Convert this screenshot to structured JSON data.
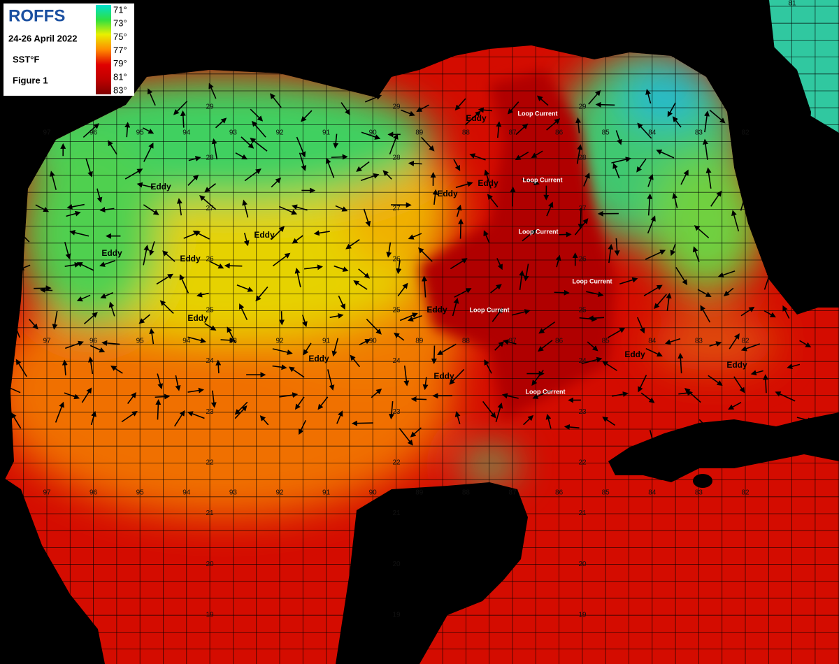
{
  "header": {
    "logo": "ROFFS",
    "date": "24-26 April 2022",
    "measure": "SST°F",
    "figure": "Figure 1"
  },
  "legend": {
    "labels": [
      "71°",
      "73°",
      "75°",
      "77°",
      "79°",
      "81°",
      "83°"
    ]
  },
  "map": {
    "longitudes": [
      97,
      96,
      95,
      94,
      93,
      92,
      91,
      90,
      89,
      88,
      87,
      86,
      85,
      84,
      83,
      82
    ],
    "top_longitude": 81,
    "latitudes": [
      29,
      28,
      27,
      26,
      25,
      24,
      23,
      22,
      21,
      20,
      19
    ],
    "eddies": [
      "Eddy",
      "Eddy",
      "Eddy",
      "Eddy",
      "Eddy",
      "Eddy",
      "Eddy",
      "Eddy",
      "Eddy",
      "Eddy",
      "Eddy",
      "Eddy",
      "Eddy"
    ],
    "loop_current": [
      "Loop Current",
      "Loop Current",
      "Loop Current",
      "Loop Current",
      "Loop Current",
      "Loop Current"
    ]
  }
}
